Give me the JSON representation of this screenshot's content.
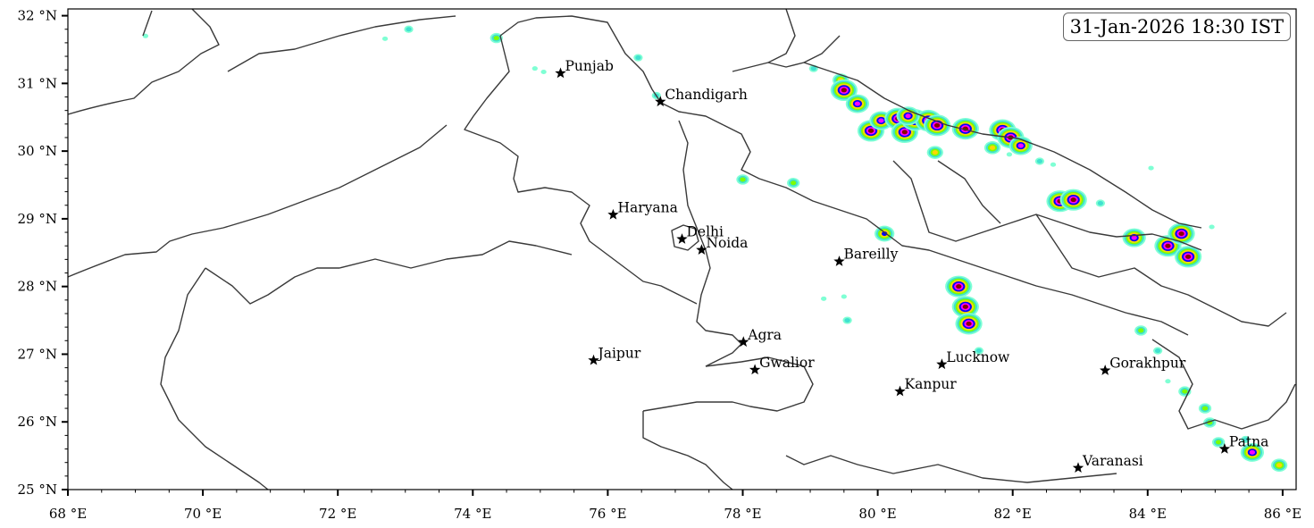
{
  "timestamp": "31-Jan-2026 18:30 IST",
  "map": {
    "lon_range": [
      68,
      86.2
    ],
    "lat_range": [
      25,
      32.1
    ],
    "lon_ticks": [
      {
        "value": 68,
        "label": "68 °E"
      },
      {
        "value": 70,
        "label": "70 °E"
      },
      {
        "value": 72,
        "label": "72 °E"
      },
      {
        "value": 74,
        "label": "74 °E"
      },
      {
        "value": 76,
        "label": "76 °E"
      },
      {
        "value": 78,
        "label": "78 °E"
      },
      {
        "value": 80,
        "label": "80 °E"
      },
      {
        "value": 82,
        "label": "82 °E"
      },
      {
        "value": 84,
        "label": "84 °E"
      },
      {
        "value": 86,
        "label": "86 °E"
      }
    ],
    "lat_ticks": [
      {
        "value": 25,
        "label": "25 °N"
      },
      {
        "value": 26,
        "label": "26 °N"
      },
      {
        "value": 27,
        "label": "27 °N"
      },
      {
        "value": 28,
        "label": "28 °N"
      },
      {
        "value": 29,
        "label": "29 °N"
      },
      {
        "value": 30,
        "label": "30 °N"
      },
      {
        "value": 31,
        "label": "31 °N"
      },
      {
        "value": 32,
        "label": "32 °N"
      }
    ],
    "cities": [
      {
        "name": "Punjab",
        "lon": 75.3,
        "lat": 31.15
      },
      {
        "name": "Chandigarh",
        "lon": 76.78,
        "lat": 30.73
      },
      {
        "name": "Haryana",
        "lon": 76.08,
        "lat": 29.06
      },
      {
        "name": "Delhi",
        "lon": 77.1,
        "lat": 28.7
      },
      {
        "name": "Noida",
        "lon": 77.39,
        "lat": 28.54
      },
      {
        "name": "Bareilly",
        "lon": 79.43,
        "lat": 28.37
      },
      {
        "name": "Agra",
        "lon": 78.01,
        "lat": 27.18
      },
      {
        "name": "Jaipur",
        "lon": 75.79,
        "lat": 26.91
      },
      {
        "name": "Gwalior",
        "lon": 78.18,
        "lat": 26.77
      },
      {
        "name": "Lucknow",
        "lon": 80.95,
        "lat": 26.85
      },
      {
        "name": "Kanpur",
        "lon": 80.33,
        "lat": 26.45
      },
      {
        "name": "Gorakhpur",
        "lon": 83.37,
        "lat": 26.76
      },
      {
        "name": "Varanasi",
        "lon": 82.97,
        "lat": 25.32
      },
      {
        "name": "Patna",
        "lon": 85.14,
        "lat": 25.6
      }
    ],
    "precip_colors": [
      "#7fffd4",
      "#40e0d0",
      "#7cfc00",
      "#ffd700",
      "#0000ff",
      "#ff00ff",
      "#8b0000"
    ],
    "precip_cells": [
      {
        "lon": 69.15,
        "lat": 31.7,
        "level": 0
      },
      {
        "lon": 72.7,
        "lat": 31.66,
        "level": 0
      },
      {
        "lon": 73.05,
        "lat": 31.8,
        "level": 1
      },
      {
        "lon": 74.35,
        "lat": 31.67,
        "level": 2
      },
      {
        "lon": 74.92,
        "lat": 31.22,
        "level": 0
      },
      {
        "lon": 75.05,
        "lat": 31.17,
        "level": 0
      },
      {
        "lon": 76.45,
        "lat": 31.38,
        "level": 1
      },
      {
        "lon": 76.72,
        "lat": 30.82,
        "level": 1
      },
      {
        "lon": 79.05,
        "lat": 31.22,
        "level": 1
      },
      {
        "lon": 79.45,
        "lat": 31.05,
        "level": 3
      },
      {
        "lon": 79.5,
        "lat": 30.9,
        "level": 6
      },
      {
        "lon": 79.7,
        "lat": 30.7,
        "level": 5
      },
      {
        "lon": 79.9,
        "lat": 30.3,
        "level": 6
      },
      {
        "lon": 80.05,
        "lat": 30.45,
        "level": 5
      },
      {
        "lon": 80.3,
        "lat": 30.48,
        "level": 6
      },
      {
        "lon": 80.4,
        "lat": 30.28,
        "level": 6
      },
      {
        "lon": 80.55,
        "lat": 30.46,
        "level": 6
      },
      {
        "lon": 80.75,
        "lat": 30.45,
        "level": 6
      },
      {
        "lon": 80.88,
        "lat": 30.38,
        "level": 6
      },
      {
        "lon": 80.45,
        "lat": 30.52,
        "level": 5
      },
      {
        "lon": 80.85,
        "lat": 29.98,
        "level": 3
      },
      {
        "lon": 81.3,
        "lat": 30.33,
        "level": 6
      },
      {
        "lon": 81.85,
        "lat": 30.31,
        "level": 6
      },
      {
        "lon": 81.97,
        "lat": 30.2,
        "level": 6
      },
      {
        "lon": 82.12,
        "lat": 30.08,
        "level": 5
      },
      {
        "lon": 81.7,
        "lat": 30.05,
        "level": 3
      },
      {
        "lon": 82.6,
        "lat": 29.8,
        "level": 0
      },
      {
        "lon": 82.7,
        "lat": 29.26,
        "level": 6
      },
      {
        "lon": 82.9,
        "lat": 29.28,
        "level": 6
      },
      {
        "lon": 83.3,
        "lat": 29.23,
        "level": 1
      },
      {
        "lon": 84.3,
        "lat": 28.6,
        "level": 6
      },
      {
        "lon": 84.5,
        "lat": 28.78,
        "level": 6
      },
      {
        "lon": 84.6,
        "lat": 28.44,
        "level": 6
      },
      {
        "lon": 84.95,
        "lat": 28.88,
        "level": 0
      },
      {
        "lon": 83.8,
        "lat": 28.72,
        "level": 5
      },
      {
        "lon": 80.1,
        "lat": 28.78,
        "level": 4
      },
      {
        "lon": 81.2,
        "lat": 28.0,
        "level": 6
      },
      {
        "lon": 81.3,
        "lat": 27.7,
        "level": 6
      },
      {
        "lon": 81.35,
        "lat": 27.45,
        "level": 6
      },
      {
        "lon": 81.5,
        "lat": 27.05,
        "level": 1
      },
      {
        "lon": 79.55,
        "lat": 27.5,
        "level": 1
      },
      {
        "lon": 79.2,
        "lat": 27.82,
        "level": 0
      },
      {
        "lon": 79.5,
        "lat": 27.85,
        "level": 0
      },
      {
        "lon": 78.0,
        "lat": 29.58,
        "level": 2
      },
      {
        "lon": 78.75,
        "lat": 29.53,
        "level": 2
      },
      {
        "lon": 83.9,
        "lat": 27.35,
        "level": 2
      },
      {
        "lon": 84.15,
        "lat": 27.05,
        "level": 1
      },
      {
        "lon": 84.3,
        "lat": 26.6,
        "level": 0
      },
      {
        "lon": 84.55,
        "lat": 26.45,
        "level": 2
      },
      {
        "lon": 84.85,
        "lat": 26.2,
        "level": 2
      },
      {
        "lon": 84.92,
        "lat": 25.99,
        "level": 2
      },
      {
        "lon": 85.05,
        "lat": 25.7,
        "level": 2
      },
      {
        "lon": 85.45,
        "lat": 25.74,
        "level": 1
      },
      {
        "lon": 85.55,
        "lat": 25.55,
        "level": 5
      },
      {
        "lon": 85.95,
        "lat": 25.36,
        "level": 3
      },
      {
        "lon": 84.05,
        "lat": 29.75,
        "level": 0
      },
      {
        "lon": 82.4,
        "lat": 29.85,
        "level": 1
      },
      {
        "lon": 81.95,
        "lat": 29.95,
        "level": 0
      }
    ]
  }
}
